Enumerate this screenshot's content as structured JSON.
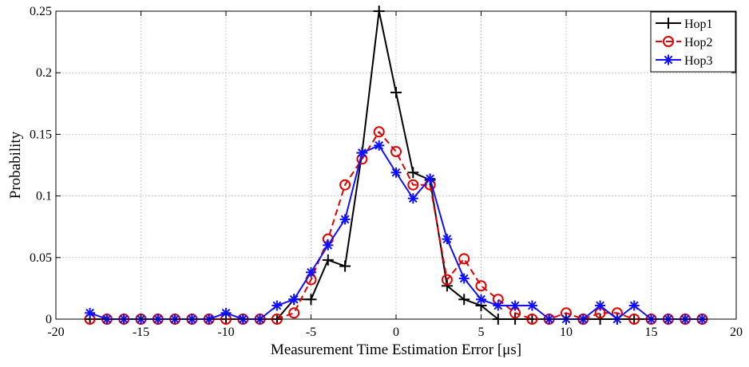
{
  "chart_data": {
    "type": "line",
    "title": "",
    "xlabel": "Measurement Time Estimation Error [μs]",
    "ylabel": "Probability",
    "xlim": [
      -20,
      20
    ],
    "ylim": [
      0,
      0.25
    ],
    "xticks": [
      "-20",
      "-15",
      "-10",
      "-5",
      "0",
      "5",
      "10",
      "15",
      "20"
    ],
    "yticks": [
      "0",
      "0.05",
      "0.1",
      "0.15",
      "0.2",
      "0.25"
    ],
    "grid": true,
    "legend_position": "top-right",
    "x": [
      -18,
      -17,
      -16,
      -15,
      -14,
      -13,
      -12,
      -11,
      -10,
      -9,
      -8,
      -7,
      -6,
      -5,
      -4,
      -3,
      -2,
      -1,
      0,
      1,
      2,
      3,
      4,
      5,
      6,
      7,
      8,
      9,
      10,
      11,
      12,
      13,
      14,
      15,
      16,
      17,
      18
    ],
    "series": [
      {
        "name": "Hop1",
        "color": "#000000",
        "marker": "plus",
        "line_style": "solid",
        "values": [
          0,
          0,
          0,
          0,
          0,
          0,
          0,
          0,
          0,
          0,
          0,
          0,
          0.016,
          0.016,
          0.048,
          0.043,
          0.135,
          0.25,
          0.184,
          0.119,
          0.113,
          0.027,
          0.016,
          0.011,
          0,
          0,
          0,
          0,
          0,
          0,
          0,
          0,
          0,
          0,
          0,
          0,
          0
        ]
      },
      {
        "name": "Hop2",
        "color": "#e00000",
        "marker": "circle",
        "line_style": "dashed",
        "values": [
          0,
          0,
          0,
          0,
          0,
          0,
          0,
          0,
          0,
          0,
          0,
          0,
          0.005,
          0.032,
          0.065,
          0.109,
          0.13,
          0.152,
          0.136,
          0.109,
          0.109,
          0.032,
          0.049,
          0.027,
          0.016,
          0.005,
          0,
          0,
          0.005,
          0,
          0.005,
          0.005,
          0,
          0,
          0,
          0,
          0
        ]
      },
      {
        "name": "Hop3",
        "color": "#1010ff",
        "marker": "asterisk",
        "line_style": "solid",
        "values": [
          0.005,
          0,
          0,
          0,
          0,
          0,
          0,
          0,
          0.005,
          0,
          0,
          0.011,
          0.016,
          0.038,
          0.06,
          0.081,
          0.135,
          0.141,
          0.119,
          0.098,
          0.114,
          0.065,
          0.033,
          0.016,
          0.011,
          0.011,
          0.011,
          0,
          0,
          0,
          0.011,
          0,
          0.011,
          0,
          0,
          0,
          0
        ]
      }
    ]
  }
}
